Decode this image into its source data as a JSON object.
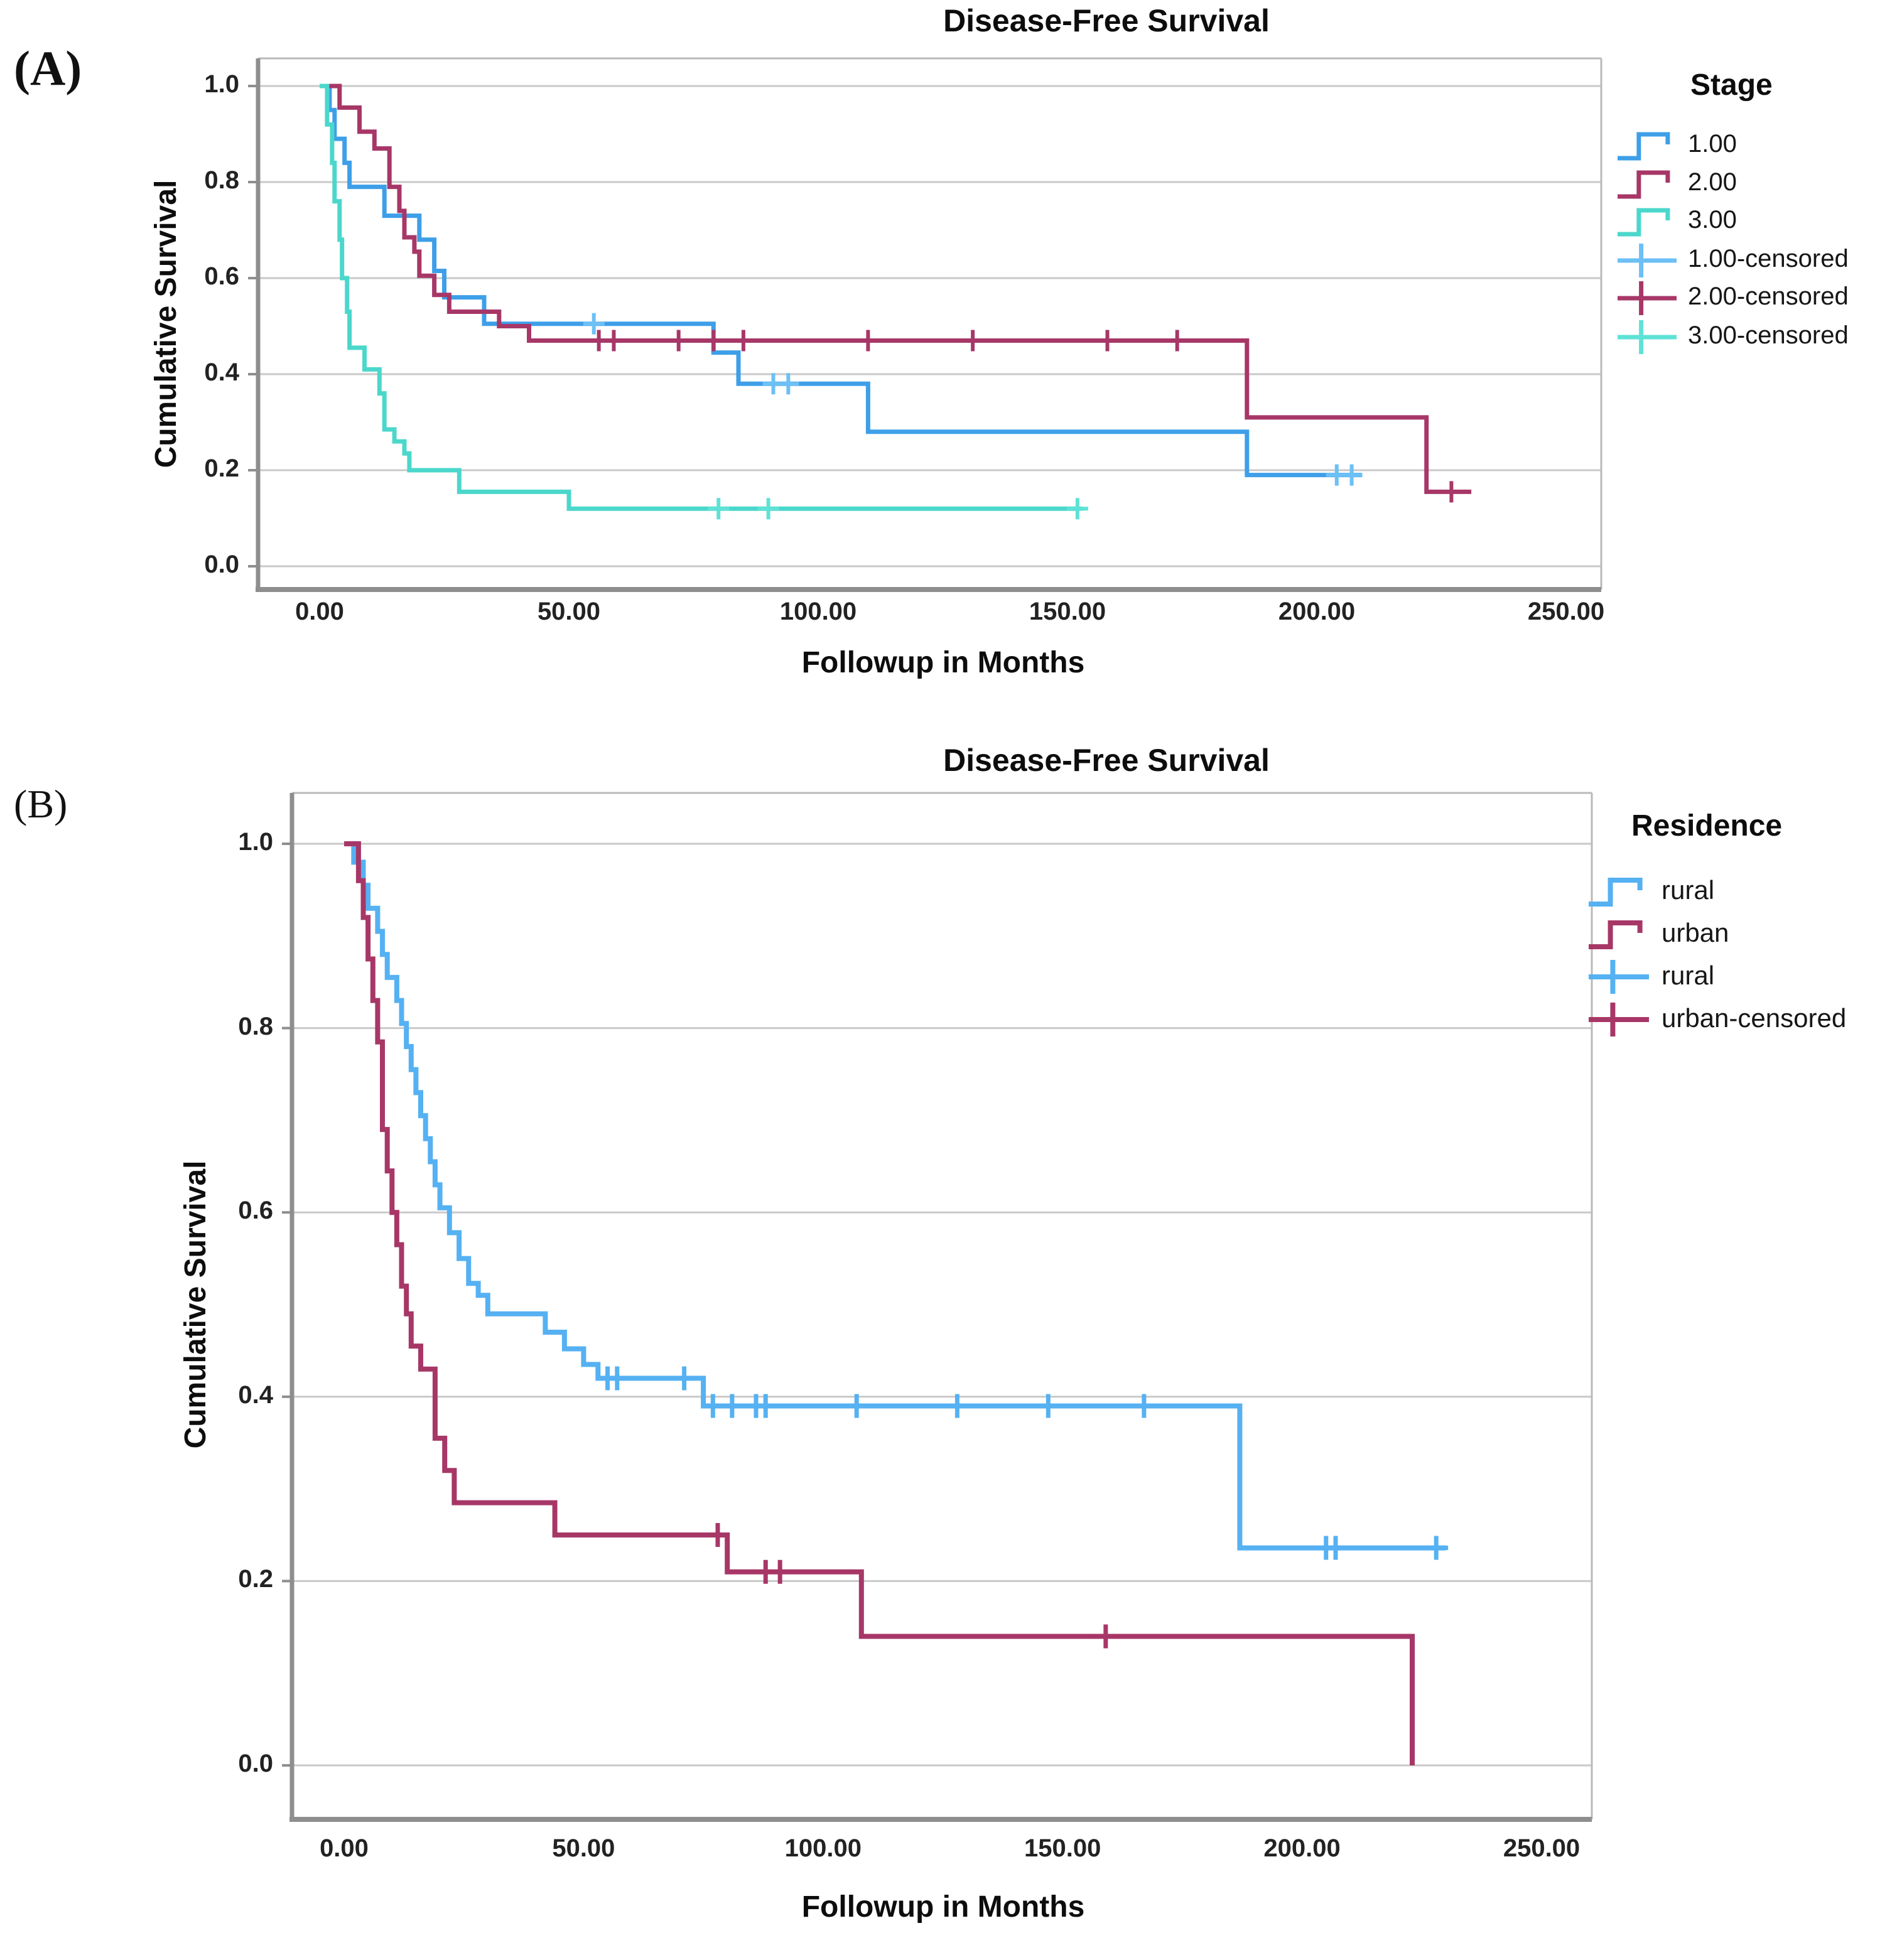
{
  "figure": {
    "panel_a_label": "(A)",
    "panel_b_label": "(B)"
  },
  "colors": {
    "stage1_blue": "#3e9fe8",
    "stage1_censor_blue": "#6cc0f5",
    "stage2_crimson": "#a73767",
    "stage3_cyan": "#4bd7cb",
    "stage3_censor_cyan": "#5fe2d6",
    "rural_blue": "#55b1f2",
    "urban_crimson": "#a73767",
    "gridline_gray": "#c9c9c9",
    "axis_gray": "#8e8e8e"
  },
  "chart_data": [
    {
      "type": "line",
      "subtype": "kaplan_meier_step",
      "panel": "A",
      "title": "Disease-Free Survival",
      "xlabel": "Followup in Months",
      "ylabel": "Cumulative Survival",
      "legend_title": "Stage",
      "legend_position": "right",
      "grid": true,
      "xlim": [
        0,
        250
      ],
      "ylim": [
        0.0,
        1.0
      ],
      "x_ticks": [
        0,
        50,
        100,
        150,
        200,
        250
      ],
      "x_tick_labels": [
        "0.00",
        "50.00",
        "100.00",
        "150.00",
        "200.00",
        "250.00"
      ],
      "y_ticks": [
        1.0,
        0.8,
        0.6,
        0.4,
        0.2,
        0.0
      ],
      "y_tick_labels": [
        "1.0",
        "0.8",
        "0.6",
        "0.4",
        "0.2",
        "0.0"
      ],
      "series": [
        {
          "name": "1.00",
          "color": "#3e9fe8",
          "censor_color": "#6cc0f5",
          "steps": [
            [
              0,
              1
            ],
            [
              2,
              1
            ],
            [
              2,
              0.95
            ],
            [
              3,
              0.95
            ],
            [
              3,
              0.89
            ],
            [
              5,
              0.89
            ],
            [
              5,
              0.84
            ],
            [
              6,
              0.84
            ],
            [
              6,
              0.79
            ],
            [
              13,
              0.79
            ],
            [
              13,
              0.73
            ],
            [
              20,
              0.73
            ],
            [
              20,
              0.68
            ],
            [
              23,
              0.68
            ],
            [
              23,
              0.615
            ],
            [
              25,
              0.615
            ],
            [
              25,
              0.56
            ],
            [
              33,
              0.56
            ],
            [
              33,
              0.505
            ],
            [
              79,
              0.505
            ],
            [
              79,
              0.445
            ],
            [
              84,
              0.445
            ],
            [
              84,
              0.38
            ],
            [
              110,
              0.38
            ],
            [
              110,
              0.28
            ],
            [
              186,
              0.28
            ],
            [
              186,
              0.19
            ],
            [
              209,
              0.19
            ]
          ],
          "censored": [
            [
              55,
              0.505
            ],
            [
              91,
              0.38
            ],
            [
              94,
              0.38
            ],
            [
              204,
              0.19
            ],
            [
              207,
              0.19
            ]
          ]
        },
        {
          "name": "2.00",
          "color": "#a73767",
          "censor_color": "#a73767",
          "steps": [
            [
              0,
              1
            ],
            [
              4,
              1
            ],
            [
              4,
              0.955
            ],
            [
              8,
              0.955
            ],
            [
              8,
              0.905
            ],
            [
              11,
              0.905
            ],
            [
              11,
              0.87
            ],
            [
              14,
              0.87
            ],
            [
              14,
              0.79
            ],
            [
              16,
              0.79
            ],
            [
              16,
              0.74
            ],
            [
              17,
              0.74
            ],
            [
              17,
              0.685
            ],
            [
              19,
              0.685
            ],
            [
              19,
              0.655
            ],
            [
              20,
              0.655
            ],
            [
              20,
              0.605
            ],
            [
              23,
              0.605
            ],
            [
              23,
              0.565
            ],
            [
              26,
              0.565
            ],
            [
              26,
              0.53
            ],
            [
              36,
              0.53
            ],
            [
              36,
              0.5
            ],
            [
              42,
              0.5
            ],
            [
              42,
              0.47
            ],
            [
              186,
              0.47
            ],
            [
              186,
              0.31
            ],
            [
              222,
              0.31
            ],
            [
              222,
              0.155
            ],
            [
              231,
              0.155
            ]
          ],
          "censored": [
            [
              56,
              0.47
            ],
            [
              59,
              0.47
            ],
            [
              72,
              0.47
            ],
            [
              79,
              0.47
            ],
            [
              85,
              0.47
            ],
            [
              110,
              0.47
            ],
            [
              131,
              0.47
            ],
            [
              158,
              0.47
            ],
            [
              172,
              0.47
            ],
            [
              227,
              0.155
            ]
          ]
        },
        {
          "name": "3.00",
          "color": "#4bd7cb",
          "censor_color": "#5fe2d6",
          "steps": [
            [
              0,
              1
            ],
            [
              1.5,
              1
            ],
            [
              1.5,
              0.92
            ],
            [
              2.5,
              0.92
            ],
            [
              2.5,
              0.84
            ],
            [
              3,
              0.84
            ],
            [
              3,
              0.76
            ],
            [
              4,
              0.76
            ],
            [
              4,
              0.68
            ],
            [
              4.5,
              0.68
            ],
            [
              4.5,
              0.6
            ],
            [
              5.5,
              0.6
            ],
            [
              5.5,
              0.53
            ],
            [
              6,
              0.53
            ],
            [
              6,
              0.455
            ],
            [
              9,
              0.455
            ],
            [
              9,
              0.41
            ],
            [
              12,
              0.41
            ],
            [
              12,
              0.36
            ],
            [
              13,
              0.36
            ],
            [
              13,
              0.285
            ],
            [
              15,
              0.285
            ],
            [
              15,
              0.26
            ],
            [
              17,
              0.26
            ],
            [
              17,
              0.235
            ],
            [
              18,
              0.235
            ],
            [
              18,
              0.2
            ],
            [
              28,
              0.2
            ],
            [
              28,
              0.155
            ],
            [
              50,
              0.155
            ],
            [
              50,
              0.12
            ],
            [
              153,
              0.12
            ]
          ],
          "censored": [
            [
              80,
              0.12
            ],
            [
              90,
              0.12
            ],
            [
              152,
              0.12
            ]
          ]
        }
      ],
      "legend_entries": [
        {
          "label": "1.00",
          "marker": "step",
          "color": "#3e9fe8"
        },
        {
          "label": "2.00",
          "marker": "step",
          "color": "#a73767"
        },
        {
          "label": "3.00",
          "marker": "step",
          "color": "#4bd7cb"
        },
        {
          "label": "1.00-censored",
          "marker": "plus",
          "color": "#6cc0f5"
        },
        {
          "label": "2.00-censored",
          "marker": "plus",
          "color": "#a73767"
        },
        {
          "label": "3.00-censored",
          "marker": "plus",
          "color": "#5fe2d6"
        }
      ]
    },
    {
      "type": "line",
      "subtype": "kaplan_meier_step",
      "panel": "B",
      "title": "Disease-Free Survival",
      "xlabel": "Followup in Months",
      "ylabel": "Cumulative Survival",
      "legend_title": "Residence",
      "legend_position": "right",
      "grid": true,
      "xlim": [
        0,
        250
      ],
      "ylim": [
        0.0,
        1.0
      ],
      "x_ticks": [
        0,
        50,
        100,
        150,
        200,
        250
      ],
      "x_tick_labels": [
        "0.00",
        "50.00",
        "100.00",
        "150.00",
        "200.00",
        "250.00"
      ],
      "y_ticks": [
        1.0,
        0.8,
        0.6,
        0.4,
        0.2,
        0.0
      ],
      "y_tick_labels": [
        "1.0",
        "0.8",
        "0.6",
        "0.4",
        "0.2",
        "0.0"
      ],
      "series": [
        {
          "name": "rural",
          "color": "#55b1f2",
          "censor_color": "#55b1f2",
          "steps": [
            [
              0,
              1
            ],
            [
              2,
              1
            ],
            [
              2,
              0.98
            ],
            [
              4,
              0.98
            ],
            [
              4,
              0.955
            ],
            [
              5,
              0.955
            ],
            [
              5,
              0.93
            ],
            [
              7,
              0.93
            ],
            [
              7,
              0.905
            ],
            [
              8,
              0.905
            ],
            [
              8,
              0.88
            ],
            [
              9,
              0.88
            ],
            [
              9,
              0.855
            ],
            [
              11,
              0.855
            ],
            [
              11,
              0.83
            ],
            [
              12,
              0.83
            ],
            [
              12,
              0.805
            ],
            [
              13,
              0.805
            ],
            [
              13,
              0.78
            ],
            [
              14,
              0.78
            ],
            [
              14,
              0.755
            ],
            [
              15,
              0.755
            ],
            [
              15,
              0.73
            ],
            [
              16,
              0.73
            ],
            [
              16,
              0.705
            ],
            [
              17,
              0.705
            ],
            [
              17,
              0.68
            ],
            [
              18,
              0.68
            ],
            [
              18,
              0.655
            ],
            [
              19,
              0.655
            ],
            [
              19,
              0.63
            ],
            [
              20,
              0.63
            ],
            [
              20,
              0.605
            ],
            [
              22,
              0.605
            ],
            [
              22,
              0.578
            ],
            [
              24,
              0.578
            ],
            [
              24,
              0.55
            ],
            [
              26,
              0.55
            ],
            [
              26,
              0.523
            ],
            [
              28,
              0.523
            ],
            [
              28,
              0.51
            ],
            [
              30,
              0.51
            ],
            [
              30,
              0.49
            ],
            [
              42,
              0.49
            ],
            [
              42,
              0.47
            ],
            [
              46,
              0.47
            ],
            [
              46,
              0.452
            ],
            [
              50,
              0.452
            ],
            [
              50,
              0.435
            ],
            [
              53,
              0.435
            ],
            [
              53,
              0.42
            ],
            [
              75,
              0.42
            ],
            [
              75,
              0.39
            ],
            [
              187,
              0.39
            ],
            [
              187,
              0.236
            ],
            [
              230,
              0.236
            ]
          ],
          "censored": [
            [
              55,
              0.42
            ],
            [
              57,
              0.42
            ],
            [
              71,
              0.42
            ],
            [
              77,
              0.39
            ],
            [
              81,
              0.39
            ],
            [
              86,
              0.39
            ],
            [
              88,
              0.39
            ],
            [
              107,
              0.39
            ],
            [
              128,
              0.39
            ],
            [
              147,
              0.39
            ],
            [
              167,
              0.39
            ],
            [
              205,
              0.236
            ],
            [
              207,
              0.236
            ],
            [
              228,
              0.236
            ]
          ]
        },
        {
          "name": "urban",
          "color": "#a73767",
          "censor_color": "#a73767",
          "steps": [
            [
              0,
              1
            ],
            [
              3,
              1
            ],
            [
              3,
              0.96
            ],
            [
              4,
              0.96
            ],
            [
              4,
              0.92
            ],
            [
              5,
              0.92
            ],
            [
              5,
              0.875
            ],
            [
              6,
              0.875
            ],
            [
              6,
              0.83
            ],
            [
              7,
              0.83
            ],
            [
              7,
              0.785
            ],
            [
              8,
              0.785
            ],
            [
              8,
              0.69
            ],
            [
              9,
              0.69
            ],
            [
              9,
              0.645
            ],
            [
              10,
              0.645
            ],
            [
              10,
              0.6
            ],
            [
              11,
              0.6
            ],
            [
              11,
              0.565
            ],
            [
              12,
              0.565
            ],
            [
              12,
              0.52
            ],
            [
              13,
              0.52
            ],
            [
              13,
              0.49
            ],
            [
              14,
              0.49
            ],
            [
              14,
              0.455
            ],
            [
              16,
              0.455
            ],
            [
              16,
              0.43
            ],
            [
              19,
              0.43
            ],
            [
              19,
              0.355
            ],
            [
              21,
              0.355
            ],
            [
              21,
              0.32
            ],
            [
              23,
              0.32
            ],
            [
              23,
              0.285
            ],
            [
              44,
              0.285
            ],
            [
              44,
              0.25
            ],
            [
              80,
              0.25
            ],
            [
              80,
              0.21
            ],
            [
              108,
              0.21
            ],
            [
              108,
              0.14
            ],
            [
              223,
              0.14
            ],
            [
              223,
              0
            ]
          ],
          "censored": [
            [
              78,
              0.25
            ],
            [
              88,
              0.21
            ],
            [
              91,
              0.21
            ],
            [
              159,
              0.14
            ]
          ]
        }
      ],
      "legend_entries": [
        {
          "label": "rural",
          "marker": "step",
          "color": "#55b1f2"
        },
        {
          "label": "urban",
          "marker": "step",
          "color": "#a73767"
        },
        {
          "label": "rural",
          "marker": "plus",
          "color": "#55b1f2"
        },
        {
          "label": "urban-censored",
          "marker": "plus",
          "color": "#a73767"
        }
      ]
    }
  ]
}
